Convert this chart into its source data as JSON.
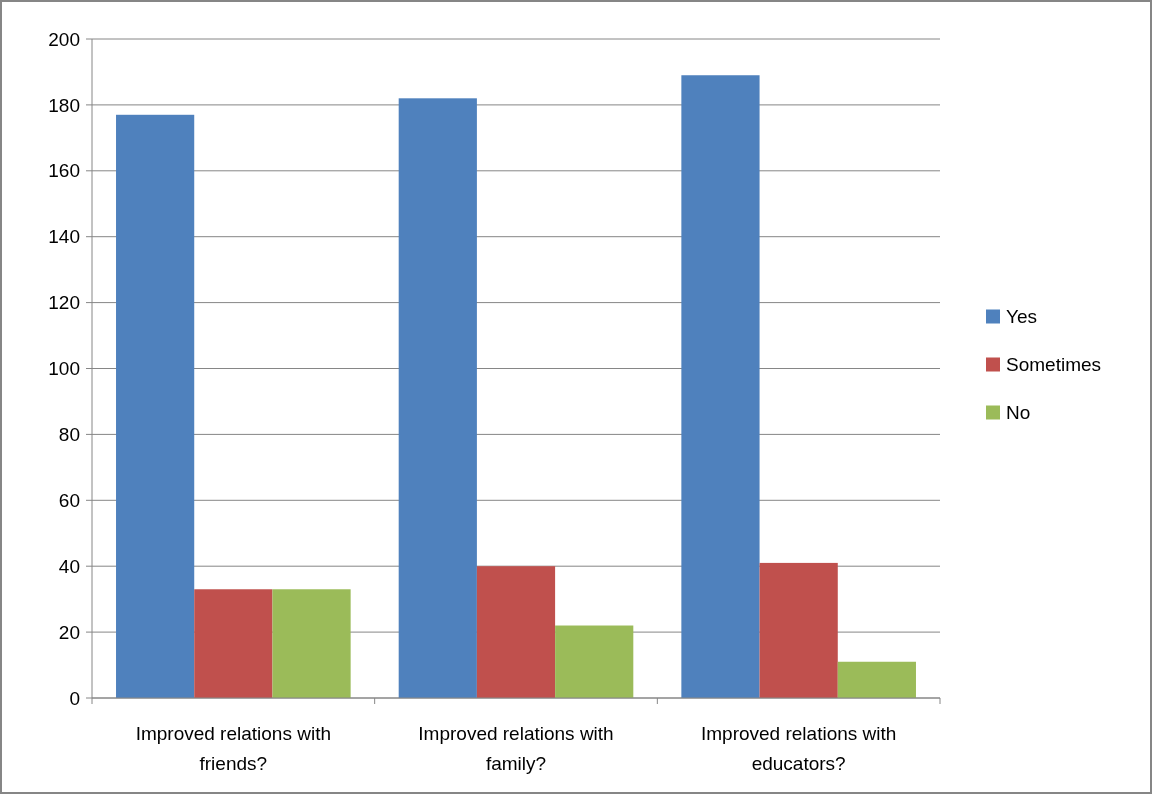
{
  "chart_data": {
    "type": "bar",
    "categories": [
      "Improved relations with friends?",
      "Improved relations with family?",
      "Improved relations with educators?"
    ],
    "series": [
      {
        "name": "Yes",
        "color": "#4f81bd",
        "values": [
          177,
          182,
          189
        ]
      },
      {
        "name": "Sometimes",
        "color": "#c0504d",
        "values": [
          33,
          40,
          41
        ]
      },
      {
        "name": "No",
        "color": "#9bbb59",
        "values": [
          33,
          22,
          11
        ]
      }
    ],
    "ylim": [
      0,
      200
    ],
    "yticks": [
      0,
      20,
      40,
      60,
      80,
      100,
      120,
      140,
      160,
      180,
      200
    ],
    "grid": "y",
    "legend": "right"
  }
}
